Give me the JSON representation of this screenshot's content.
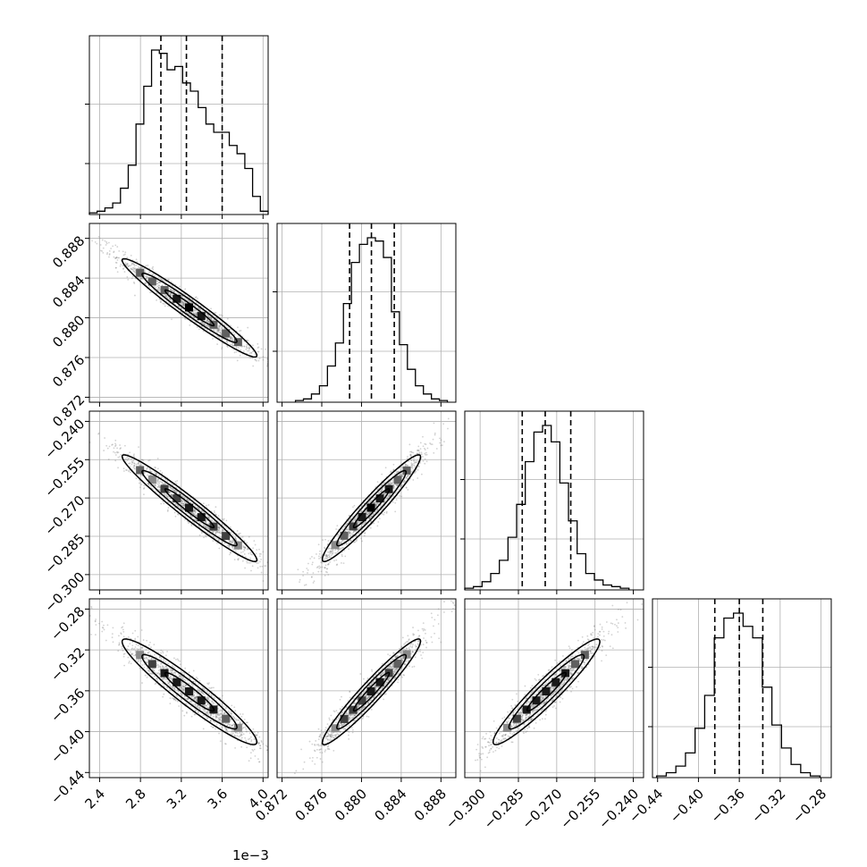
{
  "chart_data": {
    "type": "corner",
    "offset_text": "1e−3",
    "parameters": [
      {
        "range": [
          2.3,
          4.05
        ],
        "ticks": [
          {
            "v": 2.4,
            "label": "2.4"
          },
          {
            "v": 2.8,
            "label": "2.8"
          },
          {
            "v": 3.2,
            "label": "3.2"
          },
          {
            "v": 3.6,
            "label": "3.6"
          },
          {
            "v": 4.0,
            "label": "4.0"
          }
        ],
        "quantiles": [
          3.0,
          3.25,
          3.6
        ],
        "mean": 3.28,
        "hist": [
          0.01,
          0.02,
          0.04,
          0.07,
          0.16,
          0.3,
          0.55,
          0.78,
          1.0,
          0.98,
          0.88,
          0.9,
          0.8,
          0.75,
          0.65,
          0.55,
          0.5,
          0.5,
          0.42,
          0.37,
          0.28,
          0.11,
          0.02
        ]
      },
      {
        "range": [
          0.8715,
          0.8895
        ],
        "ticks": [
          {
            "v": 0.872,
            "label": "0.872"
          },
          {
            "v": 0.876,
            "label": "0.876"
          },
          {
            "v": 0.88,
            "label": "0.880"
          },
          {
            "v": 0.884,
            "label": "0.884"
          },
          {
            "v": 0.888,
            "label": "0.888"
          }
        ],
        "quantiles": [
          0.8788,
          0.881,
          0.8833
        ],
        "mean": 0.881,
        "hist": [
          0.01,
          0.02,
          0.05,
          0.1,
          0.22,
          0.36,
          0.6,
          0.85,
          0.96,
          1.0,
          0.98,
          0.88,
          0.55,
          0.35,
          0.2,
          0.1,
          0.05,
          0.02,
          0.01
        ]
      },
      {
        "range": [
          -0.306,
          -0.236
        ],
        "ticks": [
          {
            "v": -0.3,
            "label": "−0.300"
          },
          {
            "v": -0.285,
            "label": "−0.285"
          },
          {
            "v": -0.27,
            "label": "−0.270"
          },
          {
            "v": -0.255,
            "label": "−0.255"
          },
          {
            "v": -0.24,
            "label": "−0.240"
          }
        ],
        "quantiles": [
          -0.2835,
          -0.2745,
          -0.2645
        ],
        "mean": -0.274,
        "hist": [
          0.01,
          0.02,
          0.05,
          0.1,
          0.18,
          0.32,
          0.52,
          0.78,
          0.96,
          1.0,
          0.9,
          0.65,
          0.42,
          0.22,
          0.1,
          0.06,
          0.03,
          0.02,
          0.01
        ]
      },
      {
        "range": [
          -0.445,
          -0.27
        ],
        "ticks": [
          {
            "v": -0.44,
            "label": "−0.44"
          },
          {
            "v": -0.4,
            "label": "−0.40"
          },
          {
            "v": -0.36,
            "label": "−0.36"
          },
          {
            "v": -0.32,
            "label": "−0.32"
          },
          {
            "v": -0.28,
            "label": "−0.28"
          }
        ],
        "quantiles": [
          -0.384,
          -0.36,
          -0.337
        ],
        "mean": -0.361,
        "hist": [
          0.01,
          0.03,
          0.07,
          0.15,
          0.3,
          0.5,
          0.85,
          0.97,
          1.0,
          0.92,
          0.85,
          0.55,
          0.32,
          0.18,
          0.08,
          0.03,
          0.01
        ]
      }
    ],
    "correlations": [
      [
        1.0,
        -0.97,
        -0.97,
        -0.95
      ],
      [
        -0.97,
        1.0,
        0.96,
        0.96
      ],
      [
        -0.97,
        0.96,
        1.0,
        0.95
      ],
      [
        -0.95,
        0.96,
        0.95,
        1.0
      ]
    ],
    "colors": {
      "line": "#000000",
      "grid": "#b0b0b0",
      "scatter": "#7f7f7f"
    }
  }
}
